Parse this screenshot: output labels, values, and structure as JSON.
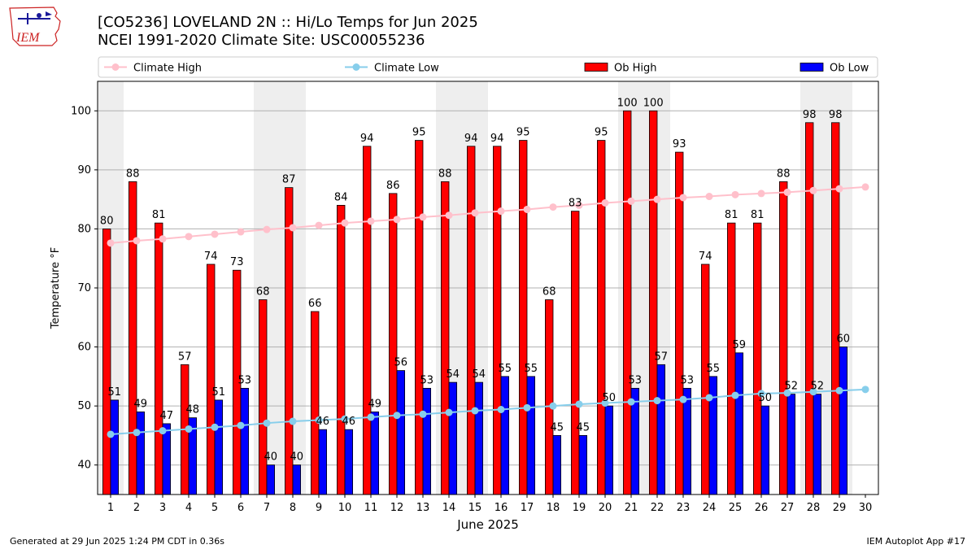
{
  "header": {
    "title_line1": "[CO5236] LOVELAND 2N :: Hi/Lo Temps for Jun 2025",
    "title_line2": "NCEI 1991-2020 Climate Site: USC00055236",
    "logo_text": "IEM"
  },
  "footer": {
    "left": "Generated at 29 Jun 2025 1:24 PM CDT in 0.36s",
    "right": "IEM Autoplot App #17"
  },
  "colors": {
    "ob_high": "#ff0000",
    "ob_low": "#0000ff",
    "climate_high": "#ffc0cb",
    "climate_low": "#87ceeb",
    "weekend_shade": "#eeeeee",
    "grid": "#b0b0b0"
  },
  "chart_data": {
    "type": "bar",
    "xlabel": "June 2025",
    "ylabel": "Temperature °F",
    "ylim": [
      35,
      105
    ],
    "yticks": [
      40,
      50,
      60,
      70,
      80,
      90,
      100
    ],
    "xlim": [
      0.5,
      30.5
    ],
    "grid": "y",
    "legend_placement": "top, above plot",
    "categories": [
      1,
      2,
      3,
      4,
      5,
      6,
      7,
      8,
      9,
      10,
      11,
      12,
      13,
      14,
      15,
      16,
      17,
      18,
      19,
      20,
      21,
      22,
      23,
      24,
      25,
      26,
      27,
      28,
      29,
      30
    ],
    "weekend_days": [
      1,
      7,
      8,
      14,
      15,
      21,
      22,
      28,
      29
    ],
    "series": [
      {
        "name": "Climate High",
        "kind": "line",
        "values": [
          77.6,
          78.0,
          78.3,
          78.7,
          79.1,
          79.5,
          79.9,
          80.2,
          80.6,
          81.0,
          81.3,
          81.6,
          82.0,
          82.3,
          82.7,
          83.0,
          83.3,
          83.7,
          84.0,
          84.4,
          84.7,
          85.0,
          85.3,
          85.5,
          85.8,
          86.0,
          86.2,
          86.5,
          86.8,
          87.1
        ]
      },
      {
        "name": "Climate Low",
        "kind": "line",
        "values": [
          45.2,
          45.5,
          45.8,
          46.1,
          46.4,
          46.7,
          47.1,
          47.4,
          47.6,
          47.8,
          48.1,
          48.4,
          48.6,
          48.9,
          49.2,
          49.4,
          49.7,
          50.0,
          50.3,
          50.5,
          50.7,
          50.9,
          51.1,
          51.4,
          51.8,
          52.1,
          52.2,
          52.4,
          52.6,
          52.8
        ]
      },
      {
        "name": "Ob High",
        "kind": "bar",
        "values": [
          80,
          88,
          81,
          57,
          74,
          73,
          68,
          87,
          66,
          84,
          94,
          86,
          95,
          88,
          94,
          94,
          95,
          68,
          83,
          95,
          100,
          100,
          93,
          74,
          81,
          81,
          88,
          98,
          98,
          null
        ]
      },
      {
        "name": "Ob Low",
        "kind": "bar",
        "values": [
          51,
          49,
          47,
          48,
          51,
          53,
          40,
          40,
          46,
          46,
          49,
          56,
          53,
          54,
          54,
          55,
          55,
          45,
          45,
          50,
          53,
          57,
          53,
          55,
          59,
          50,
          52,
          52,
          60,
          null
        ]
      }
    ]
  }
}
